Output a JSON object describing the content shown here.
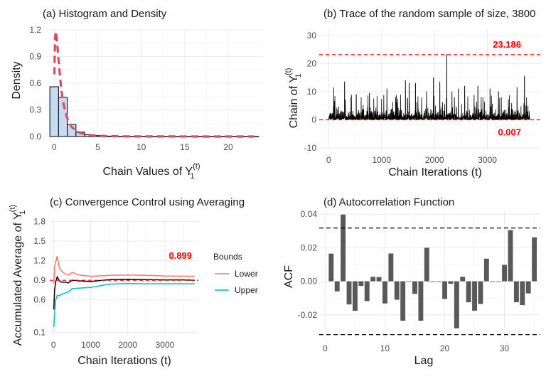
{
  "colors": {
    "density_line": "#dc4b63",
    "hist_fill": "#c6dbef",
    "hist_stroke": "#000000",
    "trace_line": "#000000",
    "ref_line": "#ff0000",
    "lower": "#f8766d",
    "upper": "#00bfc4",
    "mean_line": "#000000",
    "acf_bar": "#595959",
    "ci_line": "#000000"
  },
  "chart_data": [
    {
      "type": "bar",
      "title": "(a) Histogram and Density",
      "ylabel": "Density",
      "xlabel_main": "Chain Values of Y",
      "xlabel_sub": "1",
      "xlabel_sup": "(t)",
      "xlim": [
        -1,
        24
      ],
      "ylim": [
        0,
        1.2
      ],
      "xticks": [
        0,
        5,
        10,
        15,
        20
      ],
      "yticks": [
        0.0,
        0.3,
        0.6,
        0.9,
        1.2
      ],
      "ytick_labels": [
        "0.0",
        "0.3",
        "0.6",
        "0.9",
        "1.2"
      ],
      "bins": [
        {
          "x0": -0.5,
          "x1": 0.5,
          "density": 0.56
        },
        {
          "x0": 0.5,
          "x1": 1.5,
          "density": 0.44
        },
        {
          "x0": 1.5,
          "x1": 2.5,
          "density": 0.135
        },
        {
          "x0": 2.5,
          "x1": 3.5,
          "density": 0.05
        },
        {
          "x0": 3.5,
          "x1": 4.5,
          "density": 0.02
        },
        {
          "x0": 4.5,
          "x1": 5.5,
          "density": 0.01
        },
        {
          "x0": 5.5,
          "x1": 6.5,
          "density": 0.005
        },
        {
          "x0": 6.5,
          "x1": 7.5,
          "density": 0.003
        },
        {
          "x0": 7.5,
          "x1": 8.5,
          "density": 0.002
        },
        {
          "x0": 8.5,
          "x1": 9.5,
          "density": 0.001
        },
        {
          "x0": 9.5,
          "x1": 10.5,
          "density": 0.001
        },
        {
          "x0": 10.5,
          "x1": 23.5,
          "density": 0.0005
        }
      ],
      "density_curve": {
        "x": [
          0.02,
          0.1,
          0.2,
          0.3,
          0.45,
          0.6,
          0.8,
          1.0,
          1.3,
          1.6,
          2.0,
          2.5,
          3.0,
          4.0,
          5.0,
          6.0,
          8.0,
          10.0,
          14.0,
          18.0,
          23.0
        ],
        "y": [
          0.7,
          1.12,
          1.18,
          1.1,
          0.92,
          0.75,
          0.55,
          0.4,
          0.27,
          0.18,
          0.11,
          0.065,
          0.04,
          0.018,
          0.009,
          0.005,
          0.002,
          0.001,
          0.0005,
          0.0003,
          0.0002
        ]
      }
    },
    {
      "type": "line",
      "title": "(b) Trace of the random sample of size, 3800",
      "xlabel": "Chain Iterations (t)",
      "ylabel_main": "Chain of Y",
      "ylabel_sub": "1",
      "ylabel_sup": "(t)",
      "xlim": [
        -180,
        4000
      ],
      "ylim": [
        -11,
        32
      ],
      "xticks": [
        0,
        1000,
        2000,
        3000
      ],
      "yticks": [
        -10,
        0,
        10,
        20,
        30
      ],
      "n_iterations": 3800,
      "series_summary": "positive right-skewed draws mostly below 5, with frequent spikes up to ~15 and a maximum of 23.186 near t=2230",
      "spikes": [
        {
          "t": 95,
          "y": 11.5
        },
        {
          "t": 300,
          "y": 13.5
        },
        {
          "t": 520,
          "y": 9
        },
        {
          "t": 770,
          "y": 9.5
        },
        {
          "t": 1100,
          "y": 11
        },
        {
          "t": 1450,
          "y": 14
        },
        {
          "t": 1520,
          "y": 13
        },
        {
          "t": 1640,
          "y": 13
        },
        {
          "t": 1850,
          "y": 10
        },
        {
          "t": 1980,
          "y": 15
        },
        {
          "t": 2100,
          "y": 13.5
        },
        {
          "t": 2232,
          "y": 23.186
        },
        {
          "t": 2330,
          "y": 10
        },
        {
          "t": 2450,
          "y": 11
        },
        {
          "t": 2570,
          "y": 12
        },
        {
          "t": 2820,
          "y": 12
        },
        {
          "t": 3050,
          "y": 11
        },
        {
          "t": 3210,
          "y": 10
        },
        {
          "t": 3560,
          "y": 11.5
        },
        {
          "t": 3700,
          "y": 15.5
        }
      ],
      "ref_lines": [
        {
          "y": 23.186,
          "label": "23.186"
        },
        {
          "y": 0.007,
          "label": "0.007"
        }
      ]
    },
    {
      "type": "line",
      "title": "(c) Convergence Control using Averaging",
      "xlabel": "Chain Iterations (t)",
      "ylabel_main": "Accumulated Average of Y",
      "ylabel_sub": "1",
      "ylabel_sup": "(t)",
      "xlim": [
        -100,
        3900
      ],
      "ylim": [
        0.05,
        1.85
      ],
      "xticks": [
        0,
        1000,
        2000,
        3000
      ],
      "yticks": [
        0.1,
        0.6,
        0.9,
        1.2,
        1.5,
        1.8
      ],
      "ytick_labels": [
        "0.1",
        "0.6",
        "0.9",
        "1.2",
        "1.5",
        "1.8"
      ],
      "ref_line": {
        "y": 0.899,
        "label": "0.899"
      },
      "legend": {
        "title": "Bounds",
        "placement": "right",
        "items": [
          "Lower",
          "Upper"
        ]
      },
      "series": [
        {
          "name": "Lower",
          "x": [
            10,
            30,
            60,
            100,
            150,
            200,
            300,
            400,
            500,
            700,
            1000,
            1500,
            2000,
            2500,
            3000,
            3500,
            3800
          ],
          "y": [
            0.85,
            1.12,
            1.18,
            1.27,
            1.1,
            1.05,
            1.0,
            0.98,
            1.02,
            0.98,
            0.96,
            0.975,
            0.98,
            0.975,
            0.965,
            0.962,
            0.96
          ]
        },
        {
          "x": [
            10,
            30,
            60,
            100,
            150,
            200,
            300,
            400,
            500,
            700,
            1000,
            1500,
            2000,
            2500,
            3000,
            3500,
            3800
          ],
          "y": [
            0.45,
            0.75,
            0.88,
            0.95,
            0.9,
            0.87,
            0.87,
            0.86,
            0.9,
            0.89,
            0.88,
            0.91,
            0.915,
            0.91,
            0.905,
            0.905,
            0.9
          ]
        },
        {
          "name": "Upper",
          "x": [
            10,
            30,
            60,
            100,
            150,
            200,
            300,
            400,
            500,
            700,
            1000,
            1500,
            2000,
            2500,
            3000,
            3500,
            3800
          ],
          "y": [
            0.18,
            0.38,
            0.6,
            0.67,
            0.66,
            0.68,
            0.7,
            0.72,
            0.77,
            0.78,
            0.79,
            0.84,
            0.85,
            0.845,
            0.845,
            0.845,
            0.845
          ]
        }
      ]
    },
    {
      "type": "bar",
      "title": "(d) Autocorrelation Function",
      "xlabel": "Lag",
      "ylabel": "ACF",
      "xlim": [
        -1,
        36
      ],
      "ylim": [
        -0.0345,
        0.0418
      ],
      "xticks": [
        0,
        10,
        20,
        30
      ],
      "yticks": [
        -0.02,
        0.0,
        0.02,
        0.04
      ],
      "ytick_labels": [
        "-0.02",
        "0.00",
        "0.02",
        "0.04"
      ],
      "ci_bounds": [
        0.0318,
        -0.0318
      ],
      "lags": [
        1,
        2,
        3,
        4,
        5,
        6,
        7,
        8,
        9,
        10,
        11,
        12,
        13,
        14,
        15,
        16,
        17,
        18,
        19,
        20,
        21,
        22,
        23,
        24,
        25,
        26,
        27,
        28,
        29,
        30,
        31,
        32,
        33,
        34,
        35
      ],
      "values": [
        0.0165,
        -0.006,
        0.0398,
        -0.0138,
        -0.0176,
        -0.0027,
        -0.0118,
        0.0027,
        0.0025,
        -0.0132,
        0.0166,
        -0.011,
        -0.0235,
        0.0,
        -0.0075,
        -0.0235,
        0.02,
        -0.0003,
        0.0,
        -0.0105,
        -0.0015,
        -0.028,
        0.0027,
        -0.0125,
        -0.0175,
        -0.0135,
        0.0135,
        0.0,
        0.0,
        0.0098,
        0.0305,
        -0.0125,
        -0.0142,
        -0.0072,
        0.0262
      ]
    }
  ]
}
